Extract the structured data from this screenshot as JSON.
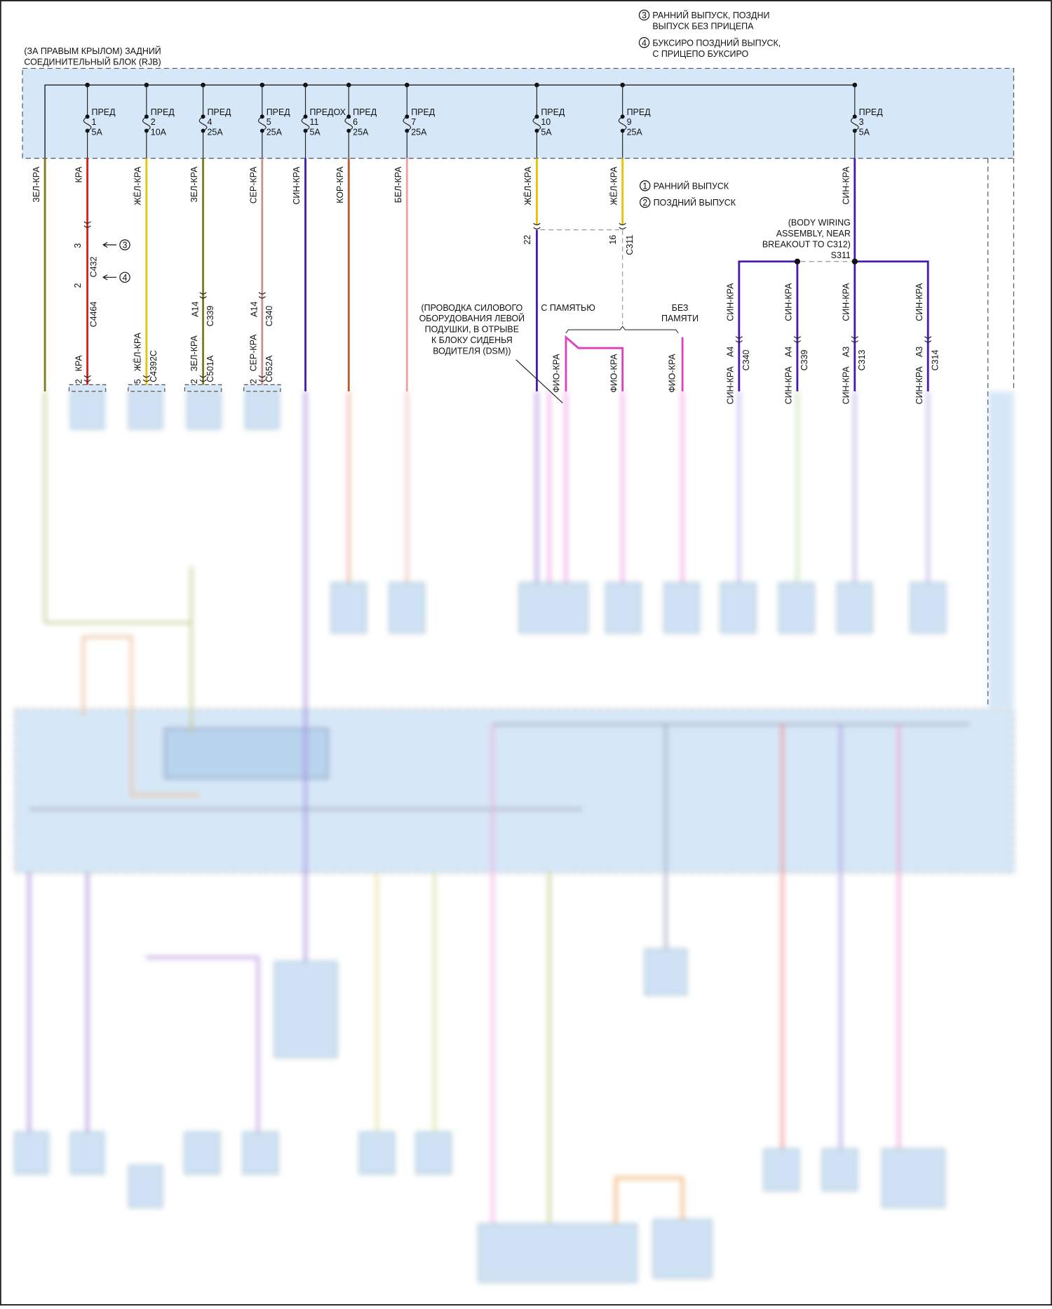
{
  "block_title": [
    "(ЗА ПРАВЫМ КРЫЛОМ) ЗАДНИЙ",
    "СОЕДИНИТЕЛЬНЫЙ БЛОК (RJB)"
  ],
  "notes": [
    {
      "num": "3",
      "lines": [
        "РАННИЙ ВЫПУСК, ПОЗДНИ",
        "ВЫПУСК БЕЗ ПРИЦЕПА"
      ]
    },
    {
      "num": "4",
      "lines": [
        "БУКСИРО ПОЗДНИЙ ВЫПУСК,",
        "С ПРИЦЕПО БУКСИРО"
      ]
    },
    {
      "num": "1",
      "lines": [
        "РАННИЙ ВЫПУСК"
      ]
    },
    {
      "num": "2",
      "lines": [
        "ПОЗДНИЙ ВЫПУСК"
      ]
    }
  ],
  "fuses": [
    {
      "label": "ПРЕД",
      "num": "1",
      "rating": "5A"
    },
    {
      "label": "ПРЕД",
      "num": "2",
      "rating": "10A"
    },
    {
      "label": "ПРЕД",
      "num": "4",
      "rating": "25A"
    },
    {
      "label": "ПРЕД",
      "num": "5",
      "rating": "25A"
    },
    {
      "label": "ПРЕДОХ",
      "num": "11",
      "rating": "5A"
    },
    {
      "label": "ПРЕД",
      "num": "6",
      "rating": "25A"
    },
    {
      "label": "ПРЕД",
      "num": "7",
      "rating": "25A"
    },
    {
      "label": "ПРЕД",
      "num": "10",
      "rating": "5A"
    },
    {
      "label": "ПРЕД",
      "num": "9",
      "rating": "25A"
    },
    {
      "label": "ПРЕД",
      "num": "3",
      "rating": "5A"
    }
  ],
  "wires": [
    {
      "label": "ЗЕЛ-КРА",
      "color": "#7d7d1e"
    },
    {
      "label": "КРА",
      "color": "#d42020"
    },
    {
      "label": "ЖЁЛ-КРА",
      "color": "#e8c400"
    },
    {
      "label": "ЗЕЛ-КРА",
      "color": "#7d7d1e"
    },
    {
      "label": "СЕР-КРА",
      "color": "#c99090"
    },
    {
      "label": "СИН-КРА",
      "color": "#4a1ab0"
    },
    {
      "label": "КОР-КРА",
      "color": "#b0602a"
    },
    {
      "label": "БЕЛ-КРА",
      "color": "#f0a0a0"
    },
    {
      "label": "ЖЁЛ-КРА",
      "color": "#e8c400"
    },
    {
      "label": "ЖЁЛ-КРА",
      "color": "#e8c400"
    },
    {
      "label": "СИН-КРА",
      "color": "#4a1ab0"
    }
  ],
  "connectors": {
    "c432": {
      "pin": "3",
      "name": "C432"
    },
    "c4464": {
      "pin": "2",
      "name": "C4464"
    },
    "c339_left": {
      "pin": "A14",
      "name": "C339"
    },
    "c340_left": {
      "pin": "A14",
      "name": "C340"
    },
    "kra_end": {
      "pin": "2",
      "wire": "КРА"
    },
    "c4392c": {
      "pin": "5",
      "name": "C4392C",
      "wire": "ЖЁЛ-КРА"
    },
    "c501a": {
      "pin": "2",
      "name": "C501A",
      "wire": "ЗЕЛ-КРА"
    },
    "c652a": {
      "pin": "2",
      "name": "C652A",
      "wire": "СЕР-КРА"
    },
    "c311_22": {
      "pin": "22"
    },
    "c311_16": {
      "pin": "16",
      "name": "C311"
    },
    "right": [
      {
        "pin": "A4",
        "name": "C340",
        "wire": "СИН-КРА"
      },
      {
        "pin": "A4",
        "name": "C339",
        "wire": "СИН-КРА"
      },
      {
        "pin": "A3",
        "name": "C313",
        "wire": "СИН-КРА"
      },
      {
        "pin": "A3",
        "name": "C314",
        "wire": "СИН-КРА"
      }
    ]
  },
  "splice": {
    "lines": [
      "(BODY WIRING",
      "ASSEMBLY, NEAR",
      "BREAKOUT TO C312)"
    ],
    "name": "S311"
  },
  "dsm_note": [
    "(ПРОВОДКА СИЛОВОГО",
    "ОБОРУДОВАНИЯ ЛЕВОЙ",
    "ПОДУШКИ, В ОТРЫВЕ",
    "К БЛОКУ СИДЕНЬЯ",
    "ВОДИТЕЛЯ (DSM))"
  ],
  "memory": {
    "with": "С ПАМЯТЬЮ",
    "without": [
      "БЕЗ",
      "ПАМЯТИ"
    ],
    "wire": "ФИО-КРА",
    "color": "#e040c0"
  },
  "colors": {
    "block_fill": "#d6e8f8",
    "block_border": "#555555"
  }
}
